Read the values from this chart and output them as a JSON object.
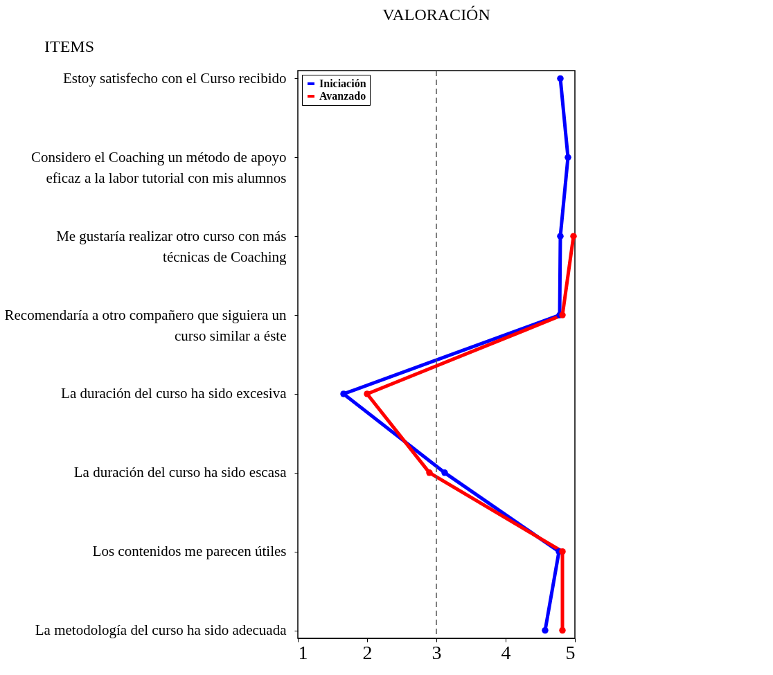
{
  "chart_data": {
    "type": "line",
    "title": "VALORACIÓN",
    "annotations": [
      "ITEMS"
    ],
    "orientation": "horizontal",
    "categories": [
      "Estoy satisfecho con el Curso recibido",
      "Considero el Coaching un método de apoyo eficaz a la labor tutorial con mis alumnos",
      "Me gustaría realizar otro curso con más técnicas de Coaching",
      "Recomendaría a otro compañero que siguiera un curso similar a éste",
      "La duración del curso ha sido excesiva",
      "La duración del curso ha sido escasa",
      "Los contenidos me parecen útiles",
      "La metodología del curso ha sido adecuada"
    ],
    "series": [
      {
        "name": "Iniciación",
        "color": "#0000ff",
        "values": [
          4.79,
          4.9,
          4.79,
          4.78,
          1.66,
          3.12,
          4.77,
          4.57
        ]
      },
      {
        "name": "Avanzado",
        "color": "#ff0000",
        "values": [
          null,
          null,
          4.98,
          4.82,
          2.0,
          2.9,
          4.82,
          4.82
        ]
      }
    ],
    "xlim": [
      1,
      5
    ],
    "xticks": [
      1,
      2,
      3,
      4,
      5
    ],
    "ref_lines": [
      {
        "axis": "x",
        "value": 3,
        "color": "#555555",
        "line_style": "dashed"
      }
    ],
    "legend": "top left",
    "marker": "circle",
    "line_style": "solid"
  }
}
